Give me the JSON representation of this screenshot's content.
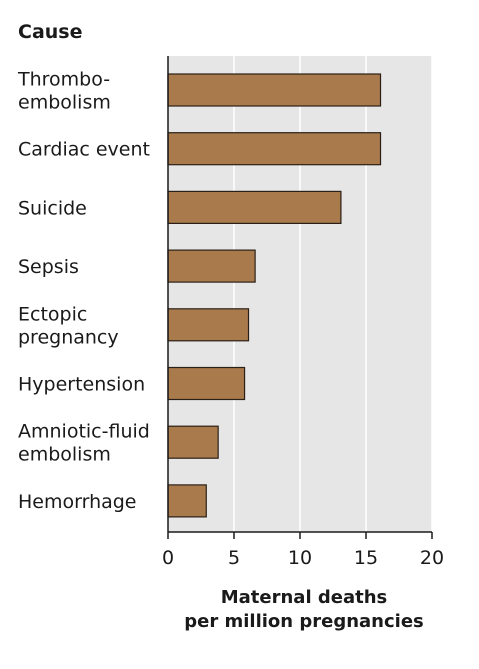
{
  "chart_data": {
    "type": "bar",
    "orientation": "horizontal",
    "category_heading": "Cause",
    "categories": [
      [
        "Thrombo-",
        "embolism"
      ],
      [
        "Cardiac event"
      ],
      [
        "Suicide"
      ],
      [
        "Sepsis"
      ],
      [
        "Ectopic",
        "pregnancy"
      ],
      [
        "Hypertension"
      ],
      [
        "Amniotic-fluid",
        "embolism"
      ],
      [
        "Hemorrhage"
      ]
    ],
    "values": [
      16.1,
      16.1,
      13.1,
      6.6,
      6.1,
      5.8,
      3.8,
      2.9
    ],
    "xlabel": [
      "Maternal deaths",
      "per million pregnancies"
    ],
    "xlim": [
      0,
      20
    ],
    "xticks": [
      0,
      5,
      10,
      15,
      20
    ],
    "grid": true,
    "colors": {
      "bar": "#a87a4c",
      "bar_edge": "#2b2017",
      "plot_background": "#e6e6e6",
      "grid": "#ffffff",
      "axis": "#1a1a1a"
    }
  }
}
